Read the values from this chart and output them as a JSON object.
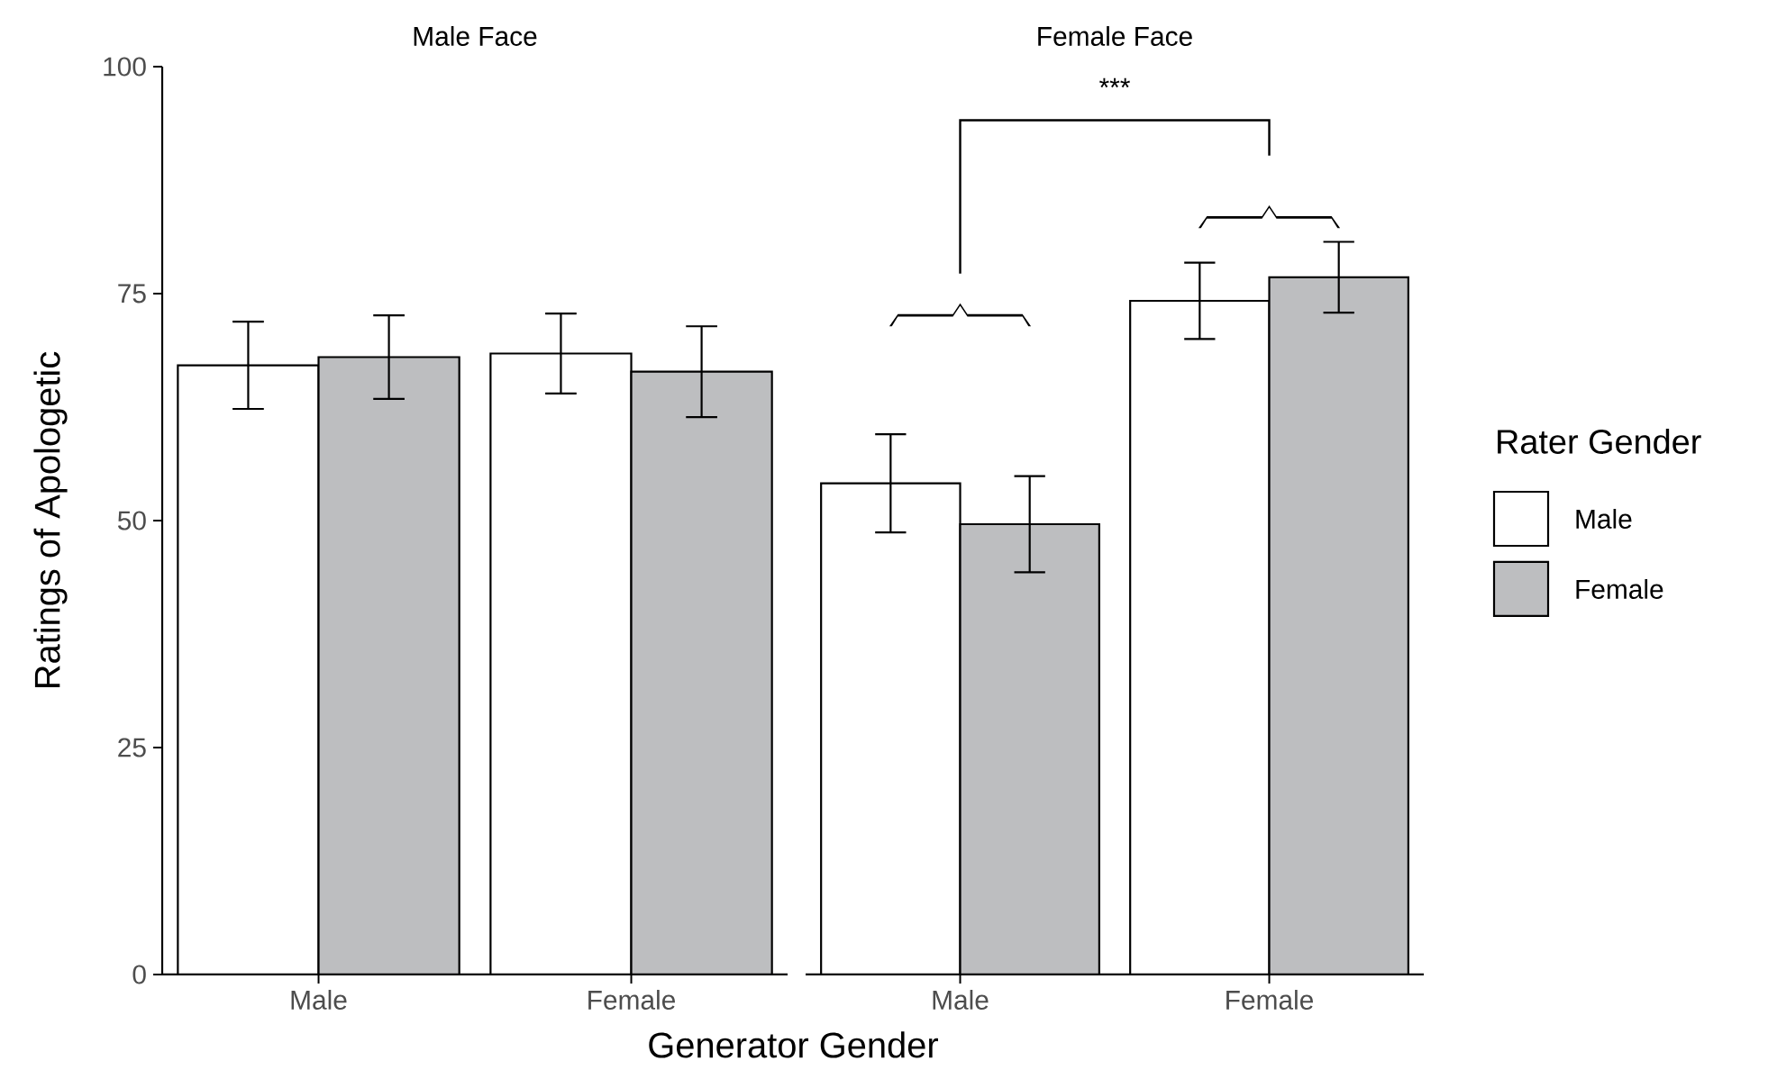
{
  "chart_data": [
    {
      "type": "bar",
      "title": "Male Face",
      "ylabel": "Ratings of Apologetic",
      "xlabel": "Generator Gender",
      "categories": [
        "Male",
        "Female"
      ],
      "series": [
        {
          "color": "#ffffff",
          "values": [
            67.1,
            68.4
          ],
          "errors": [
            4.8,
            4.4
          ]
        },
        {
          "color": "#bdbec0",
          "values": [
            68.0,
            66.4
          ],
          "errors": [
            4.6,
            5.0
          ]
        }
      ],
      "ylim": [
        0,
        100
      ],
      "yticks": [
        0,
        25,
        50,
        75,
        100
      ]
    },
    {
      "type": "bar",
      "title": "Female Face",
      "categories": [
        "Male",
        "Female"
      ],
      "series": [
        {
          "name": "Male",
          "color": "#ffffff",
          "values": [
            54.1,
            74.2
          ],
          "errors": [
            5.4,
            4.2
          ]
        },
        {
          "name": "Female",
          "color": "#bdbec0",
          "values": [
            49.6,
            76.8
          ],
          "errors": [
            5.3,
            3.9
          ]
        }
      ],
      "ylim": [
        0,
        100
      ],
      "tick_labels": "x",
      "legend": "right",
      "legend_title": "Rater Gender",
      "annotations": [
        "***"
      ]
    }
  ]
}
